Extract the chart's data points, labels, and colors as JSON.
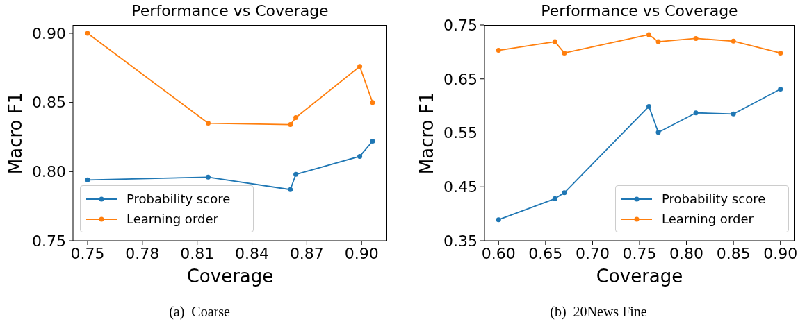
{
  "chart_data": [
    {
      "type": "line",
      "title": "Performance vs Coverage",
      "xlabel": "Coverage",
      "ylabel": "Macro F1",
      "annotations": [
        "(a)  Coarse"
      ],
      "x": [
        0.75,
        0.816,
        0.861,
        0.864,
        0.899,
        0.906
      ],
      "series": [
        {
          "name": "Probability score",
          "color": "#1f77b4",
          "values": [
            0.794,
            0.796,
            0.787,
            0.798,
            0.811,
            0.822
          ]
        },
        {
          "name": "Learning order",
          "color": "#ff7f0e",
          "values": [
            0.9,
            0.835,
            0.834,
            0.839,
            0.876,
            0.85
          ]
        }
      ],
      "xlim": [
        0.742,
        0.914
      ],
      "ylim": [
        0.75,
        0.906
      ],
      "xticks": [
        {
          "value": 0.75,
          "label": "0.75"
        },
        {
          "value": 0.78,
          "label": "0.78"
        },
        {
          "value": 0.81,
          "label": "0.81"
        },
        {
          "value": 0.84,
          "label": "0.84"
        },
        {
          "value": 0.87,
          "label": "0.87"
        },
        {
          "value": 0.9,
          "label": "0.90"
        }
      ],
      "yticks": [
        {
          "value": 0.75,
          "label": "0.75"
        },
        {
          "value": 0.8,
          "label": "0.80"
        },
        {
          "value": 0.85,
          "label": "0.85"
        },
        {
          "value": 0.9,
          "label": "0.90"
        }
      ],
      "legend": "bottom left",
      "marker": "circle",
      "grid": false
    },
    {
      "type": "line",
      "title": "Performance vs Coverage",
      "xlabel": "Coverage",
      "ylabel": "Macro F1",
      "annotations": [
        "(b)  20News Fine"
      ],
      "x": [
        0.6,
        0.66,
        0.67,
        0.76,
        0.77,
        0.81,
        0.85,
        0.9
      ],
      "series": [
        {
          "name": "Probability score",
          "color": "#1f77b4",
          "values": [
            0.389,
            0.428,
            0.439,
            0.599,
            0.551,
            0.587,
            0.585,
            0.631
          ]
        },
        {
          "name": "Learning order",
          "color": "#ff7f0e",
          "values": [
            0.703,
            0.719,
            0.698,
            0.732,
            0.719,
            0.725,
            0.72,
            0.698
          ]
        }
      ],
      "xlim": [
        0.585,
        0.915
      ],
      "ylim": [
        0.35,
        0.75
      ],
      "xticks": [
        {
          "value": 0.6,
          "label": "0.60"
        },
        {
          "value": 0.65,
          "label": "0.65"
        },
        {
          "value": 0.7,
          "label": "0.70"
        },
        {
          "value": 0.75,
          "label": "0.75"
        },
        {
          "value": 0.8,
          "label": "0.80"
        },
        {
          "value": 0.85,
          "label": "0.85"
        },
        {
          "value": 0.9,
          "label": "0.90"
        }
      ],
      "yticks": [
        {
          "value": 0.35,
          "label": "0.35"
        },
        {
          "value": 0.45,
          "label": "0.45"
        },
        {
          "value": 0.55,
          "label": "0.55"
        },
        {
          "value": 0.65,
          "label": "0.65"
        },
        {
          "value": 0.75,
          "label": "0.75"
        }
      ],
      "legend": "bottom right",
      "marker": "circle",
      "grid": false
    }
  ]
}
